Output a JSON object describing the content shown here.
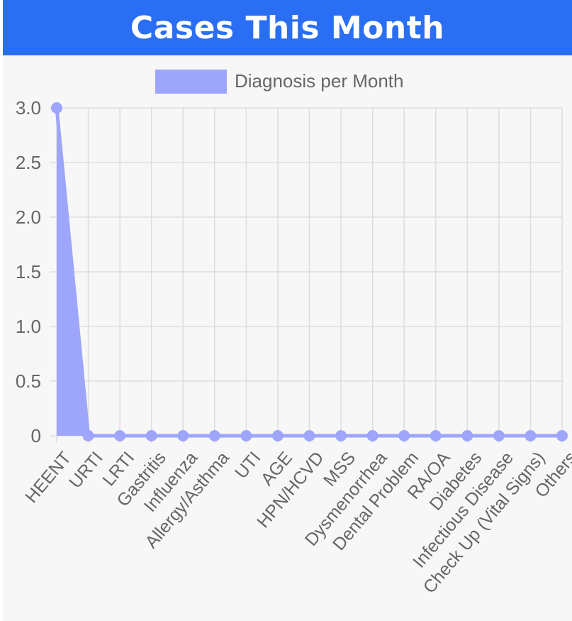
{
  "header": {
    "title": "Cases This Month"
  },
  "colors": {
    "header_bg": "#2a6ff3",
    "series_fill": "#9ea6fb",
    "series_line": "#9ea6fb",
    "grid": "#dddddd",
    "axis_text": "#666666"
  },
  "chart_data": {
    "type": "area",
    "legend": "top",
    "grid": true,
    "ylim": [
      0,
      3
    ],
    "yticks": [
      "0",
      "0.5",
      "1.0",
      "1.5",
      "2.0",
      "2.5",
      "3.0"
    ],
    "categories": [
      "HEENT",
      "URTI",
      "LRTI",
      "Gastritis",
      "Influenza",
      "Allergy/Asthma",
      "UTI",
      "AGE",
      "HPN/HCVD",
      "MSS",
      "Dysmenorrhea",
      "Dental Problem",
      "RA/OA",
      "Diabetes",
      "Infectious Disease",
      "Check Up (Vital Signs)",
      "Others"
    ],
    "series": [
      {
        "name": "Diagnosis per Month",
        "values": [
          3,
          0,
          0,
          0,
          0,
          0,
          0,
          0,
          0,
          0,
          0,
          0,
          0,
          0,
          0,
          0,
          0
        ]
      }
    ]
  }
}
